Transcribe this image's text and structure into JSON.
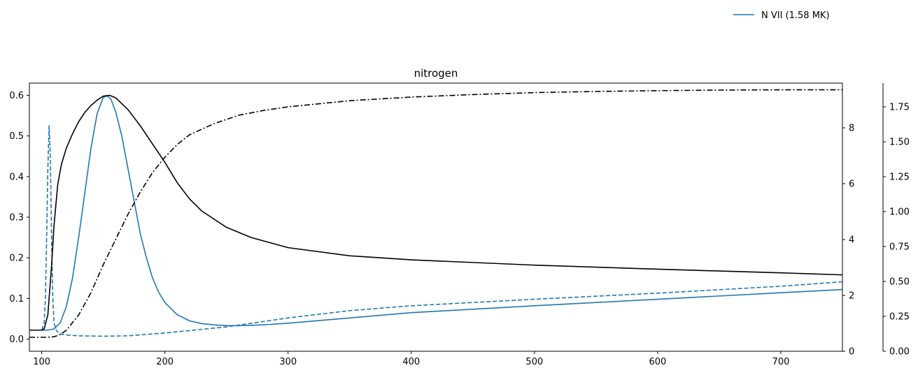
{
  "chart_data": {
    "type": "line",
    "title": "nitrogen",
    "xlabel": "",
    "ylabel": "",
    "xlim": [
      90,
      750
    ],
    "x_ticks": [
      100,
      200,
      300,
      400,
      500,
      600,
      700
    ],
    "grid": false,
    "axes": {
      "left": {
        "ylim": [
          -0.03,
          0.63
        ],
        "ticks": [
          0.0,
          0.1,
          0.2,
          0.3,
          0.4,
          0.5,
          0.6
        ],
        "format": "1"
      },
      "right": {
        "ylim": [
          0,
          9.6
        ],
        "ticks": [
          0,
          2,
          4,
          6,
          8
        ],
        "format": "0"
      },
      "right2": {
        "ylim": [
          0,
          1.92
        ],
        "ticks": [
          0.0,
          0.25,
          0.5,
          0.75,
          1.0,
          1.25,
          1.5,
          1.75
        ],
        "format": "2"
      }
    },
    "legend": {
      "placement": "top-right",
      "entries": [
        {
          "label": "N VII (1.58 MK)",
          "color": "#1f77b4",
          "dash": "solid"
        }
      ]
    },
    "series": [
      {
        "color": "#1f77b4",
        "dash": "solid",
        "axis": "left",
        "x": [
          90,
          100,
          105,
          110,
          115,
          120,
          125,
          130,
          135,
          140,
          145,
          150,
          153,
          156,
          160,
          165,
          170,
          175,
          180,
          185,
          190,
          195,
          200,
          210,
          220,
          230,
          240,
          250,
          260,
          280,
          300,
          350,
          400,
          500,
          600,
          700,
          750
        ],
        "y": [
          0.022,
          0.022,
          0.022,
          0.025,
          0.04,
          0.08,
          0.15,
          0.25,
          0.36,
          0.47,
          0.555,
          0.595,
          0.598,
          0.592,
          0.56,
          0.5,
          0.42,
          0.34,
          0.26,
          0.2,
          0.15,
          0.115,
          0.09,
          0.06,
          0.045,
          0.038,
          0.035,
          0.033,
          0.033,
          0.035,
          0.039,
          0.052,
          0.065,
          0.082,
          0.098,
          0.114,
          0.122
        ]
      },
      {
        "color": "#1f77b4",
        "dash": "dashed",
        "axis": "left",
        "x": [
          90,
          100,
          102,
          103,
          104,
          105,
          106,
          107,
          108,
          109,
          110,
          112,
          115,
          120,
          130,
          150,
          170,
          200,
          250,
          300,
          350,
          400,
          500,
          600,
          700,
          750
        ],
        "y": [
          0.022,
          0.022,
          0.04,
          0.1,
          0.25,
          0.42,
          0.525,
          0.45,
          0.25,
          0.1,
          0.04,
          0.02,
          0.013,
          0.01,
          0.008,
          0.007,
          0.008,
          0.015,
          0.03,
          0.052,
          0.07,
          0.082,
          0.098,
          0.113,
          0.13,
          0.141
        ]
      },
      {
        "color": "#000000",
        "dash": "solid",
        "axis": "left",
        "x": [
          90,
          100,
          102,
          105,
          108,
          110,
          113,
          116,
          120,
          125,
          130,
          135,
          140,
          145,
          150,
          155,
          160,
          170,
          180,
          190,
          200,
          210,
          220,
          230,
          250,
          270,
          300,
          350,
          400,
          500,
          600,
          700,
          750
        ],
        "y": [
          0.022,
          0.022,
          0.025,
          0.06,
          0.18,
          0.28,
          0.38,
          0.43,
          0.47,
          0.505,
          0.535,
          0.558,
          0.575,
          0.588,
          0.598,
          0.6,
          0.594,
          0.565,
          0.525,
          0.48,
          0.435,
          0.385,
          0.345,
          0.315,
          0.275,
          0.25,
          0.225,
          0.205,
          0.195,
          0.182,
          0.172,
          0.163,
          0.158
        ]
      },
      {
        "color": "#000000",
        "dash": "dashdot",
        "axis": "right",
        "x": [
          90,
          100,
          105,
          110,
          115,
          120,
          130,
          140,
          150,
          160,
          170,
          180,
          190,
          200,
          210,
          220,
          240,
          260,
          280,
          300,
          350,
          400,
          450,
          500,
          550,
          600,
          650,
          700,
          750
        ],
        "y": [
          0.5,
          0.5,
          0.5,
          0.52,
          0.6,
          0.75,
          1.3,
          2.1,
          3.1,
          4.0,
          4.9,
          5.7,
          6.4,
          6.95,
          7.4,
          7.75,
          8.15,
          8.45,
          8.62,
          8.75,
          8.97,
          9.1,
          9.19,
          9.26,
          9.3,
          9.33,
          9.35,
          9.36,
          9.36
        ]
      }
    ]
  }
}
